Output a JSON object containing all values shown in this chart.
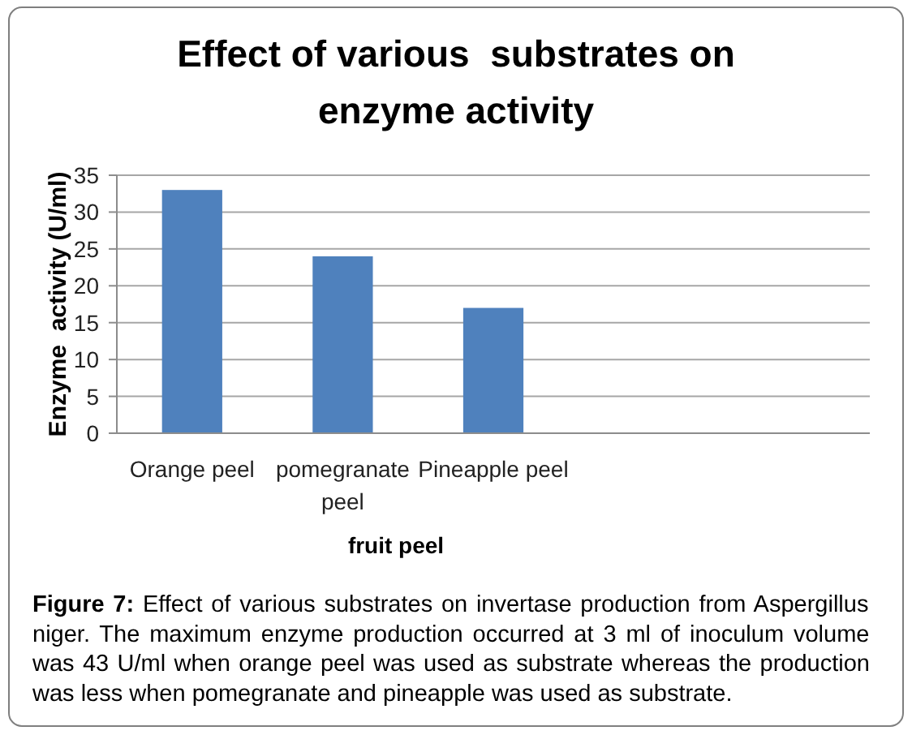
{
  "chart_data": {
    "type": "bar",
    "title": "Effect of various  substrates on enzyme activity",
    "categories": [
      "Orange peel",
      "pomegranate peel",
      "Pineapple peel",
      null,
      null
    ],
    "values": [
      33,
      24,
      17,
      null,
      null
    ],
    "color": "#4f81bd",
    "xlabel": "fruit peel",
    "ylabel": "Enzyme  activity (U/ml)",
    "ylim": [
      0,
      35
    ],
    "yticks": [
      0,
      5,
      10,
      15,
      20,
      25,
      30,
      35
    ],
    "grid": "y",
    "annotations": [
      "Figure 7: Effect of various substrates on invertase production from Aspergillus niger. The maximum enzyme production occurred at 3 ml of inoculum volume was 43 U/ml when orange peel was used as substrate whereas the production was less when pomegranate and pineapple was used as substrate."
    ]
  }
}
